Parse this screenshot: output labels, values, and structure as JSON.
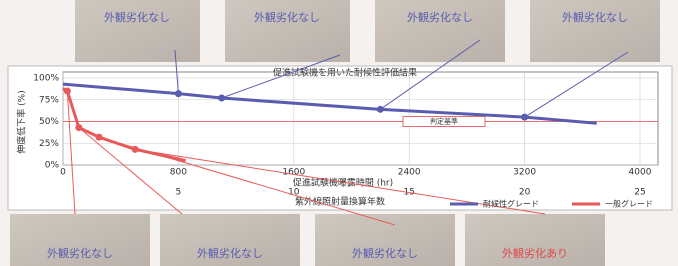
{
  "chart_data": {
    "type": "line",
    "title": "促進試験機を用いた耐候性評価結果",
    "y_label": "伸度低下率 (%)",
    "x_label": "促進試験機曝露時間 (hr)",
    "x2_label": "紫外線照射量換算年数",
    "xlim": [
      0,
      4000
    ],
    "xticks": [
      0,
      800,
      1600,
      2400,
      3200,
      4000
    ],
    "x2lim": [
      0,
      25
    ],
    "x2ticks": [
      5,
      10,
      15,
      20,
      25
    ],
    "ylim": [
      0,
      100
    ],
    "yticks": [
      {
        "value": 0,
        "label": "0%"
      },
      {
        "value": 25,
        "label": "25%"
      },
      {
        "value": 50,
        "label": "50%"
      },
      {
        "value": 75,
        "label": "75%"
      },
      {
        "value": 100,
        "label": "100%"
      }
    ],
    "grid": true,
    "threshold": {
      "value": 50,
      "label": "判定基準",
      "color": "#e04848"
    },
    "legend": "bottom-right",
    "series": [
      {
        "name": "耐候性グレード",
        "color": "#5a5cb0",
        "x": [
          0,
          800,
          1100,
          2200,
          3200,
          3700
        ],
        "values": [
          93,
          82,
          77,
          64,
          55,
          48
        ]
      },
      {
        "name": "一般グレード",
        "color": "#e85a5a",
        "x": [
          0,
          30,
          110,
          250,
          500,
          850
        ],
        "values": [
          88,
          85,
          43,
          32,
          18,
          5
        ]
      }
    ],
    "top_photos": [
      "外観劣化なし",
      "外観劣化なし",
      "外観劣化なし",
      "外観劣化なし"
    ],
    "bottom_photos": [
      "外観劣化なし",
      "外観劣化なし",
      "外観劣化なし",
      "外観劣化あり"
    ]
  }
}
